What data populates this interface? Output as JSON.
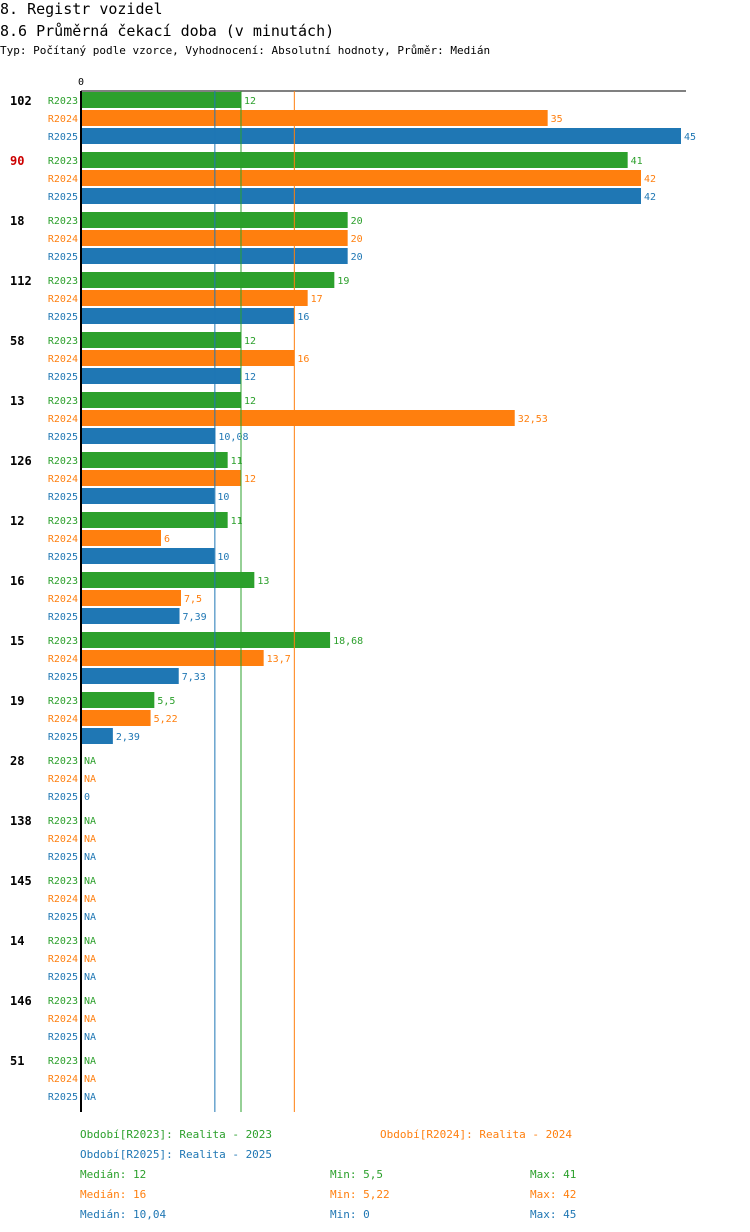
{
  "header": {
    "title": "8. Registr vozidel",
    "subtitle": "8.6 Průměrná čekací doba (v minutách)",
    "meta": "Typ: Počítaný podle vzorce, Vyhodnocení: Absolutní hodnoty, Průměr: Medián"
  },
  "colors": {
    "R2023": "#2ca02c",
    "R2024": "#ff7f0e",
    "R2025": "#1f77b4",
    "highlight": "#cc0000"
  },
  "chart_data": {
    "type": "bar",
    "orientation": "horizontal",
    "xlim": [
      0,
      45
    ],
    "x_tick_label": "0",
    "series_names": [
      "R2023",
      "R2024",
      "R2025"
    ],
    "categories": [
      {
        "label": "102",
        "highlight": false,
        "values": [
          12,
          35,
          45
        ],
        "labels": [
          "12",
          "35",
          "45"
        ]
      },
      {
        "label": "90",
        "highlight": true,
        "values": [
          41,
          42,
          42
        ],
        "labels": [
          "41",
          "42",
          "42"
        ]
      },
      {
        "label": "18",
        "highlight": false,
        "values": [
          20,
          20,
          20
        ],
        "labels": [
          "20",
          "20",
          "20"
        ]
      },
      {
        "label": "112",
        "highlight": false,
        "values": [
          19,
          17,
          16
        ],
        "labels": [
          "19",
          "17",
          "16"
        ]
      },
      {
        "label": "58",
        "highlight": false,
        "values": [
          12,
          16,
          12
        ],
        "labels": [
          "12",
          "16",
          "12"
        ]
      },
      {
        "label": "13",
        "highlight": false,
        "values": [
          12,
          32.53,
          10.08
        ],
        "labels": [
          "12",
          "32,53",
          "10,08"
        ]
      },
      {
        "label": "126",
        "highlight": false,
        "values": [
          11,
          12,
          10
        ],
        "labels": [
          "11",
          "12",
          "10"
        ]
      },
      {
        "label": "12",
        "highlight": false,
        "values": [
          11,
          6,
          10
        ],
        "labels": [
          "11",
          "6",
          "10"
        ]
      },
      {
        "label": "16",
        "highlight": false,
        "values": [
          13,
          7.5,
          7.39
        ],
        "labels": [
          "13",
          "7,5",
          "7,39"
        ]
      },
      {
        "label": "15",
        "highlight": false,
        "values": [
          18.68,
          13.7,
          7.33
        ],
        "labels": [
          "18,68",
          "13,7",
          "7,33"
        ]
      },
      {
        "label": "19",
        "highlight": false,
        "values": [
          5.5,
          5.22,
          2.39
        ],
        "labels": [
          "5,5",
          "5,22",
          "2,39"
        ]
      },
      {
        "label": "28",
        "highlight": false,
        "values": [
          null,
          null,
          0
        ],
        "labels": [
          "NA",
          "NA",
          "0"
        ]
      },
      {
        "label": "138",
        "highlight": false,
        "values": [
          null,
          null,
          null
        ],
        "labels": [
          "NA",
          "NA",
          "NA"
        ]
      },
      {
        "label": "145",
        "highlight": false,
        "values": [
          null,
          null,
          null
        ],
        "labels": [
          "NA",
          "NA",
          "NA"
        ]
      },
      {
        "label": "14",
        "highlight": false,
        "values": [
          null,
          null,
          null
        ],
        "labels": [
          "NA",
          "NA",
          "NA"
        ]
      },
      {
        "label": "146",
        "highlight": false,
        "values": [
          null,
          null,
          null
        ],
        "labels": [
          "NA",
          "NA",
          "NA"
        ]
      },
      {
        "label": "51",
        "highlight": false,
        "values": [
          null,
          null,
          null
        ],
        "labels": [
          "NA",
          "NA",
          "NA"
        ]
      }
    ],
    "reference_lines": [
      {
        "series": "R2023",
        "value": 12
      },
      {
        "series": "R2024",
        "value": 16
      },
      {
        "series": "R2025",
        "value": 10.04
      }
    ]
  },
  "legend": {
    "r2023": "Období[R2023]: Realita - 2023",
    "r2024": "Období[R2024]: Realita - 2024",
    "r2025": "Období[R2025]: Realita - 2025"
  },
  "stats": {
    "r2023": {
      "median": "Medián: 12",
      "min": "Min: 5,5",
      "max": "Max: 41"
    },
    "r2024": {
      "median": "Medián: 16",
      "min": "Min: 5,22",
      "max": "Max: 42"
    },
    "r2025": {
      "median": "Medián: 10,04",
      "min": "Min: 0",
      "max": "Max: 45"
    }
  }
}
